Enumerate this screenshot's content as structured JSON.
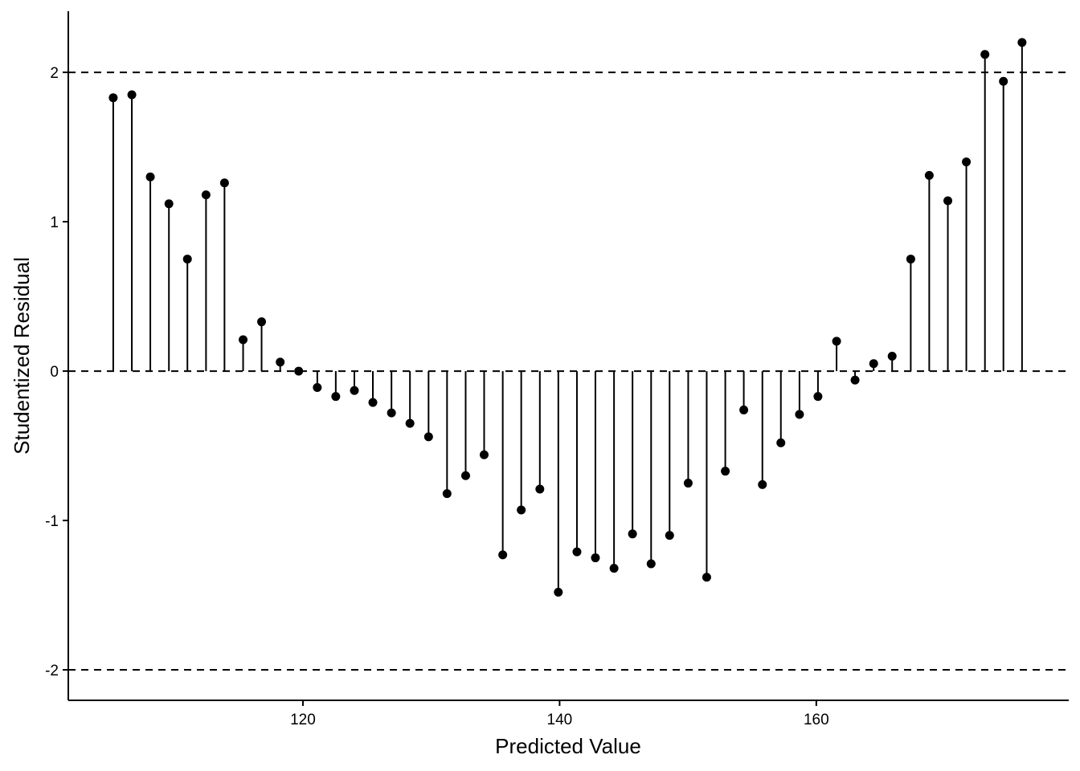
{
  "chart_data": {
    "type": "lollipop",
    "x_label": "Predicted Value",
    "y_label": "Studentized Residual",
    "x": [
      105.22,
      106.67,
      108.11,
      109.56,
      111.0,
      112.45,
      113.89,
      115.34,
      116.78,
      118.23,
      119.67,
      121.12,
      122.56,
      124.01,
      125.45,
      126.9,
      128.34,
      129.79,
      131.23,
      132.68,
      134.12,
      135.57,
      137.01,
      138.46,
      139.9,
      141.35,
      142.79,
      144.24,
      145.68,
      147.13,
      148.57,
      150.02,
      151.46,
      152.91,
      154.35,
      155.8,
      157.24,
      158.69,
      160.13,
      161.58,
      163.02,
      164.47,
      165.91,
      167.36,
      168.8,
      170.25,
      171.69,
      173.14,
      174.58,
      176.03
    ],
    "values": [
      1.83,
      1.85,
      1.3,
      1.12,
      0.75,
      1.18,
      1.26,
      0.21,
      0.33,
      0.06,
      0.0,
      -0.11,
      -0.17,
      -0.13,
      -0.21,
      -0.28,
      -0.35,
      -0.44,
      -0.82,
      -0.7,
      -0.56,
      -1.23,
      -0.93,
      -0.79,
      -1.48,
      -1.21,
      -1.25,
      -1.32,
      -1.09,
      -1.29,
      -1.1,
      -0.75,
      -1.38,
      -0.67,
      -0.26,
      -0.76,
      -0.48,
      -0.29,
      -0.17,
      0.2,
      -0.06,
      0.05,
      0.1,
      0.75,
      1.31,
      1.14,
      1.4,
      2.12,
      1.94,
      2.2
    ],
    "color": "#000000",
    "xlim": [
      101.72,
      179.67
    ],
    "ylim": [
      -2.204,
      2.409
    ],
    "xticks": [
      120,
      140,
      160
    ],
    "yticks": [
      -2,
      -1,
      0,
      1,
      2
    ],
    "hlines": [
      -2,
      0,
      2
    ]
  }
}
